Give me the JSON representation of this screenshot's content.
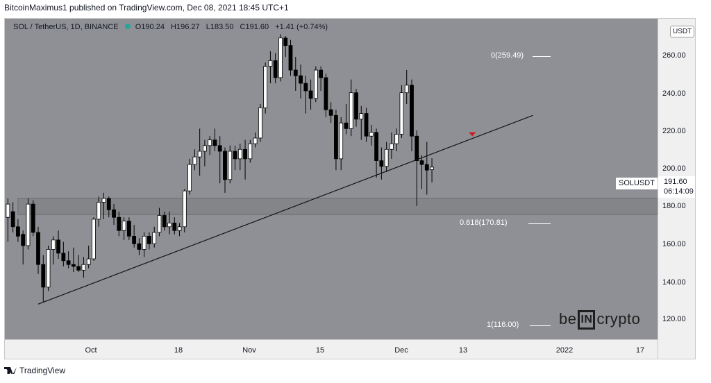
{
  "header": {
    "caption": "BitcoinMaximus1 published on TradingView.com, Dec 08, 2021 18:45 UTC+1"
  },
  "legend": {
    "symbol": "SOL / TetherUS, 1D, BINANCE",
    "open_label": "O",
    "open": "190.24",
    "high_label": "H",
    "high": "196.27",
    "low_label": "L",
    "low": "183.50",
    "close_label": "C",
    "close": "191.60",
    "change": "+1.41 (+0.74%)"
  },
  "price_axis": {
    "currency": "USDT",
    "ticks": [
      "260.00",
      "240.00",
      "220.00",
      "200.00",
      "180.00",
      "160.00",
      "140.00",
      "120.00"
    ],
    "symbol_label": "SOLUSDT",
    "last_price": "191.60",
    "countdown": "06:14:09"
  },
  "time_axis": {
    "ticks": [
      "Oct",
      "18",
      "Nov",
      "15",
      "Dec",
      "13",
      "2022",
      "17"
    ]
  },
  "fib_levels": [
    {
      "label": "0(259.49)",
      "price": 259.49
    },
    {
      "label": "0.618(170.81)",
      "price": 170.81
    },
    {
      "label": "1(116.00)",
      "price": 116.0
    }
  ],
  "brand": {
    "pre": "be",
    "box": "IN",
    "post": "crypto"
  },
  "footer": {
    "logo_text": "TradingView"
  },
  "colors": {
    "background": "#8f9095",
    "bull_candle": "#ffffff",
    "bear_candle": "#000000",
    "support_zone": "#7b7c80",
    "arrow": "#cc1c1c"
  },
  "chart_data": {
    "type": "candlestick",
    "title": "SOL / TetherUS, 1D, BINANCE",
    "ylim": [
      106,
      272
    ],
    "x_ticks": [
      "Oct",
      "18",
      "Nov",
      "15",
      "Dec",
      "13",
      "2022",
      "17"
    ],
    "support_zone": [
      166.5,
      175
    ],
    "trendline": {
      "start": {
        "day": 0,
        "price": 119
      },
      "end": {
        "day": 98,
        "price": 219
      }
    },
    "resistance_arrow": {
      "day": 86,
      "price": 209
    },
    "candles": [
      {
        "day": -6,
        "o": 165,
        "h": 175,
        "l": 152,
        "c": 172
      },
      {
        "day": -5,
        "o": 168,
        "h": 173,
        "l": 157,
        "c": 160
      },
      {
        "day": -4,
        "o": 160,
        "h": 164,
        "l": 152,
        "c": 155
      },
      {
        "day": -3,
        "o": 156,
        "h": 158,
        "l": 140,
        "c": 150
      },
      {
        "day": -2,
        "o": 150,
        "h": 175,
        "l": 148,
        "c": 172
      },
      {
        "day": -1,
        "o": 172,
        "h": 174,
        "l": 155,
        "c": 157
      },
      {
        "day": 0,
        "o": 157,
        "h": 160,
        "l": 135,
        "c": 140
      },
      {
        "day": 1,
        "o": 140,
        "h": 145,
        "l": 120,
        "c": 128
      },
      {
        "day": 2,
        "o": 128,
        "h": 150,
        "l": 126,
        "c": 148
      },
      {
        "day": 3,
        "o": 148,
        "h": 155,
        "l": 140,
        "c": 153
      },
      {
        "day": 4,
        "o": 153,
        "h": 158,
        "l": 143,
        "c": 146
      },
      {
        "day": 5,
        "o": 146,
        "h": 152,
        "l": 139,
        "c": 142
      },
      {
        "day": 6,
        "o": 142,
        "h": 147,
        "l": 138,
        "c": 140
      },
      {
        "day": 7,
        "o": 140,
        "h": 149,
        "l": 136,
        "c": 139
      },
      {
        "day": 8,
        "o": 139,
        "h": 145,
        "l": 136,
        "c": 137
      },
      {
        "day": 9,
        "o": 137,
        "h": 144,
        "l": 133,
        "c": 140
      },
      {
        "day": 10,
        "o": 140,
        "h": 150,
        "l": 138,
        "c": 143
      },
      {
        "day": 11,
        "o": 143,
        "h": 165,
        "l": 142,
        "c": 164
      },
      {
        "day": 12,
        "o": 164,
        "h": 176,
        "l": 160,
        "c": 173
      },
      {
        "day": 13,
        "o": 173,
        "h": 178,
        "l": 164,
        "c": 175
      },
      {
        "day": 14,
        "o": 175,
        "h": 176,
        "l": 165,
        "c": 169
      },
      {
        "day": 15,
        "o": 169,
        "h": 172,
        "l": 161,
        "c": 165
      },
      {
        "day": 16,
        "o": 165,
        "h": 168,
        "l": 155,
        "c": 158
      },
      {
        "day": 17,
        "o": 158,
        "h": 165,
        "l": 153,
        "c": 163
      },
      {
        "day": 18,
        "o": 163,
        "h": 165,
        "l": 153,
        "c": 155
      },
      {
        "day": 19,
        "o": 155,
        "h": 161,
        "l": 149,
        "c": 151
      },
      {
        "day": 20,
        "o": 151,
        "h": 154,
        "l": 145,
        "c": 148
      },
      {
        "day": 21,
        "o": 148,
        "h": 157,
        "l": 144,
        "c": 155
      },
      {
        "day": 22,
        "o": 155,
        "h": 157,
        "l": 148,
        "c": 151
      },
      {
        "day": 23,
        "o": 151,
        "h": 160,
        "l": 149,
        "c": 157
      },
      {
        "day": 24,
        "o": 157,
        "h": 170,
        "l": 155,
        "c": 166
      },
      {
        "day": 25,
        "o": 166,
        "h": 168,
        "l": 158,
        "c": 160
      },
      {
        "day": 26,
        "o": 160,
        "h": 168,
        "l": 156,
        "c": 162
      },
      {
        "day": 27,
        "o": 162,
        "h": 165,
        "l": 156,
        "c": 158
      },
      {
        "day": 28,
        "o": 158,
        "h": 162,
        "l": 155,
        "c": 160
      },
      {
        "day": 29,
        "o": 160,
        "h": 180,
        "l": 157,
        "c": 179
      },
      {
        "day": 30,
        "o": 179,
        "h": 196,
        "l": 177,
        "c": 193
      },
      {
        "day": 31,
        "o": 193,
        "h": 201,
        "l": 190,
        "c": 197
      },
      {
        "day": 32,
        "o": 197,
        "h": 212,
        "l": 187,
        "c": 200
      },
      {
        "day": 33,
        "o": 200,
        "h": 206,
        "l": 192,
        "c": 203
      },
      {
        "day": 34,
        "o": 203,
        "h": 208,
        "l": 198,
        "c": 206
      },
      {
        "day": 35,
        "o": 206,
        "h": 212,
        "l": 200,
        "c": 203
      },
      {
        "day": 36,
        "o": 203,
        "h": 208,
        "l": 183,
        "c": 200
      },
      {
        "day": 37,
        "o": 200,
        "h": 202,
        "l": 178,
        "c": 185
      },
      {
        "day": 38,
        "o": 185,
        "h": 203,
        "l": 183,
        "c": 200
      },
      {
        "day": 39,
        "o": 200,
        "h": 203,
        "l": 190,
        "c": 196
      },
      {
        "day": 40,
        "o": 196,
        "h": 204,
        "l": 190,
        "c": 201
      },
      {
        "day": 41,
        "o": 201,
        "h": 206,
        "l": 185,
        "c": 196
      },
      {
        "day": 42,
        "o": 196,
        "h": 206,
        "l": 194,
        "c": 204
      },
      {
        "day": 43,
        "o": 204,
        "h": 210,
        "l": 202,
        "c": 207
      },
      {
        "day": 44,
        "o": 207,
        "h": 225,
        "l": 205,
        "c": 223
      },
      {
        "day": 45,
        "o": 223,
        "h": 247,
        "l": 220,
        "c": 245
      },
      {
        "day": 46,
        "o": 245,
        "h": 253,
        "l": 236,
        "c": 248
      },
      {
        "day": 47,
        "o": 248,
        "h": 252,
        "l": 236,
        "c": 239
      },
      {
        "day": 48,
        "o": 239,
        "h": 262,
        "l": 237,
        "c": 260
      },
      {
        "day": 49,
        "o": 260,
        "h": 261,
        "l": 250,
        "c": 256
      },
      {
        "day": 50,
        "o": 256,
        "h": 259,
        "l": 240,
        "c": 243
      },
      {
        "day": 51,
        "o": 243,
        "h": 250,
        "l": 232,
        "c": 240
      },
      {
        "day": 52,
        "o": 240,
        "h": 246,
        "l": 228,
        "c": 236
      },
      {
        "day": 53,
        "o": 236,
        "h": 240,
        "l": 220,
        "c": 232
      },
      {
        "day": 54,
        "o": 232,
        "h": 238,
        "l": 222,
        "c": 228
      },
      {
        "day": 55,
        "o": 228,
        "h": 245,
        "l": 226,
        "c": 243
      },
      {
        "day": 56,
        "o": 243,
        "h": 245,
        "l": 232,
        "c": 239
      },
      {
        "day": 57,
        "o": 239,
        "h": 241,
        "l": 218,
        "c": 222
      },
      {
        "day": 58,
        "o": 222,
        "h": 226,
        "l": 215,
        "c": 219
      },
      {
        "day": 59,
        "o": 219,
        "h": 222,
        "l": 190,
        "c": 196
      },
      {
        "day": 60,
        "o": 196,
        "h": 218,
        "l": 190,
        "c": 215
      },
      {
        "day": 61,
        "o": 215,
        "h": 225,
        "l": 209,
        "c": 212
      },
      {
        "day": 62,
        "o": 212,
        "h": 238,
        "l": 208,
        "c": 231
      },
      {
        "day": 63,
        "o": 231,
        "h": 233,
        "l": 213,
        "c": 217
      },
      {
        "day": 64,
        "o": 217,
        "h": 224,
        "l": 206,
        "c": 220
      },
      {
        "day": 65,
        "o": 220,
        "h": 223,
        "l": 205,
        "c": 208
      },
      {
        "day": 66,
        "o": 208,
        "h": 214,
        "l": 203,
        "c": 210
      },
      {
        "day": 67,
        "o": 210,
        "h": 212,
        "l": 186,
        "c": 195
      },
      {
        "day": 68,
        "o": 195,
        "h": 202,
        "l": 185,
        "c": 192
      },
      {
        "day": 69,
        "o": 192,
        "h": 205,
        "l": 189,
        "c": 201
      },
      {
        "day": 70,
        "o": 201,
        "h": 210,
        "l": 196,
        "c": 204
      },
      {
        "day": 71,
        "o": 204,
        "h": 212,
        "l": 200,
        "c": 209
      },
      {
        "day": 72,
        "o": 209,
        "h": 235,
        "l": 207,
        "c": 231
      },
      {
        "day": 73,
        "o": 231,
        "h": 243,
        "l": 225,
        "c": 235
      },
      {
        "day": 74,
        "o": 235,
        "h": 238,
        "l": 200,
        "c": 208
      },
      {
        "day": 75,
        "o": 208,
        "h": 211,
        "l": 171,
        "c": 195
      },
      {
        "day": 76,
        "o": 195,
        "h": 198,
        "l": 180,
        "c": 193
      },
      {
        "day": 77,
        "o": 193,
        "h": 205,
        "l": 177,
        "c": 190
      },
      {
        "day": 78,
        "o": 190.24,
        "h": 196.27,
        "l": 183.5,
        "c": 191.6
      }
    ]
  }
}
